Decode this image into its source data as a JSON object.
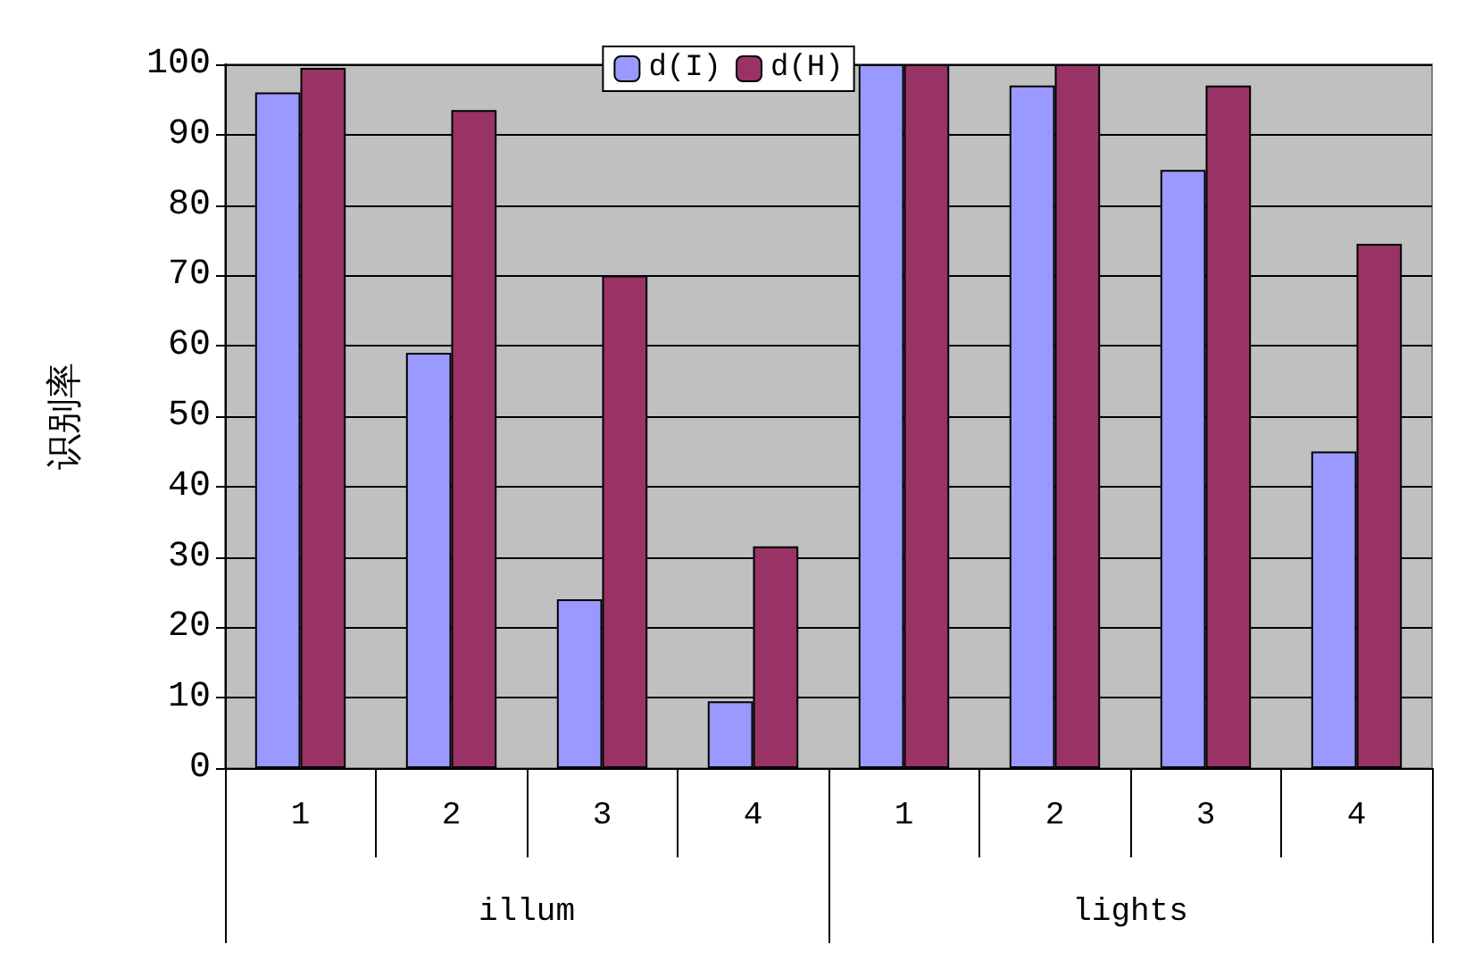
{
  "chart_data": {
    "type": "bar",
    "ylabel": "识别率",
    "categories": [
      "1",
      "2",
      "3",
      "4",
      "1",
      "2",
      "3",
      "4"
    ],
    "series": [
      {
        "name": "d(I)",
        "color": "#9999ff",
        "values": [
          96,
          59,
          24,
          9.5,
          100,
          97,
          85,
          45
        ]
      },
      {
        "name": "d(H)",
        "color": "#993366",
        "values": [
          99.5,
          93.5,
          70,
          31.5,
          100,
          100,
          97,
          74.5
        ]
      }
    ],
    "annotations": [
      "illum",
      "lights"
    ],
    "ylim": [
      0,
      100
    ],
    "yticks": [
      0,
      10,
      20,
      30,
      40,
      50,
      60,
      70,
      80,
      90,
      100
    ],
    "grid": "y",
    "legend": "top"
  }
}
